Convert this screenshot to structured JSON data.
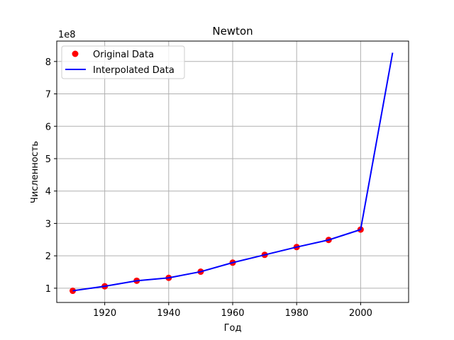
{
  "chart_data": {
    "type": "line",
    "title": "Newton",
    "xlabel": "Год",
    "ylabel": "Численность",
    "offset_label": "1e8",
    "xlim": [
      1905,
      2015
    ],
    "ylim": [
      0.56,
      8.63
    ],
    "y_scale_multiplier": 100000000,
    "x_ticks": [
      1920,
      1940,
      1960,
      1980,
      2000
    ],
    "y_ticks": [
      1,
      2,
      3,
      4,
      5,
      6,
      7,
      8
    ],
    "grid": true,
    "legend_position": "top-left",
    "series": [
      {
        "name": "Original Data",
        "kind": "scatter",
        "color": "#ff0000",
        "x": [
          1910,
          1920,
          1930,
          1940,
          1950,
          1960,
          1970,
          1980,
          1990,
          2000
        ],
        "y": [
          0.92,
          1.06,
          1.23,
          1.32,
          1.51,
          1.79,
          2.03,
          2.27,
          2.49,
          2.81
        ]
      },
      {
        "name": "Interpolated Data",
        "kind": "line",
        "color": "#0000ff",
        "x": [
          1910,
          1920,
          1930,
          1940,
          1950,
          1960,
          1970,
          1980,
          1990,
          2000,
          2010
        ],
        "y": [
          0.92,
          1.06,
          1.23,
          1.32,
          1.51,
          1.79,
          2.03,
          2.27,
          2.49,
          2.81,
          8.27
        ]
      }
    ]
  }
}
